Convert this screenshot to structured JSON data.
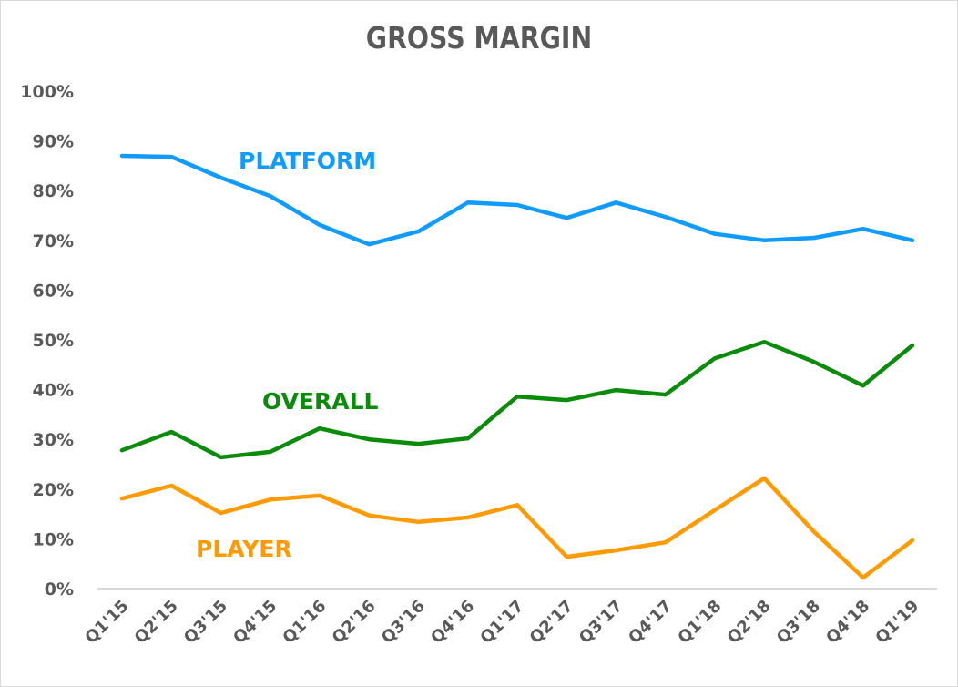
{
  "chart_data": {
    "type": "line",
    "title": "GROSS MARGIN",
    "xlabel": "",
    "ylabel": "",
    "ylim": [
      0,
      100
    ],
    "y_ticks": [
      "0%",
      "10%",
      "20%",
      "30%",
      "40%",
      "50%",
      "60%",
      "70%",
      "80%",
      "90%",
      "100%"
    ],
    "grid": false,
    "legend": "inline labels",
    "categories": [
      "Q1'15",
      "Q2'15",
      "Q3'15",
      "Q4'15",
      "Q1'16",
      "Q2'16",
      "Q3'16",
      "Q4'16",
      "Q1'17",
      "Q2'17",
      "Q3'17",
      "Q4'17",
      "Q1'18",
      "Q2'18",
      "Q3'18",
      "Q4'18",
      "Q1'19"
    ],
    "series": [
      {
        "name": "PLATFORM",
        "color": "#0f9bff",
        "values": [
          87.0,
          86.8,
          82.6,
          78.9,
          73.1,
          69.2,
          71.8,
          77.6,
          77.1,
          74.5,
          77.6,
          74.7,
          71.3,
          70.0,
          70.5,
          72.3,
          70.0
        ]
      },
      {
        "name": "OVERALL",
        "color": "#0a8c0a",
        "values": [
          27.8,
          31.5,
          26.4,
          27.5,
          32.2,
          30.0,
          29.1,
          30.2,
          38.6,
          37.9,
          39.9,
          39.0,
          46.3,
          49.6,
          45.6,
          40.8,
          48.9
        ]
      },
      {
        "name": "PLAYER",
        "color": "#ff9a00",
        "values": [
          18.1,
          20.7,
          15.2,
          17.9,
          18.7,
          14.7,
          13.4,
          14.3,
          16.8,
          6.4,
          7.7,
          9.3,
          15.8,
          22.2,
          11.5,
          2.2,
          9.7
        ]
      }
    ]
  },
  "labels": {
    "platform": "PLATFORM",
    "overall": "OVERALL",
    "player": "PLAYER"
  }
}
